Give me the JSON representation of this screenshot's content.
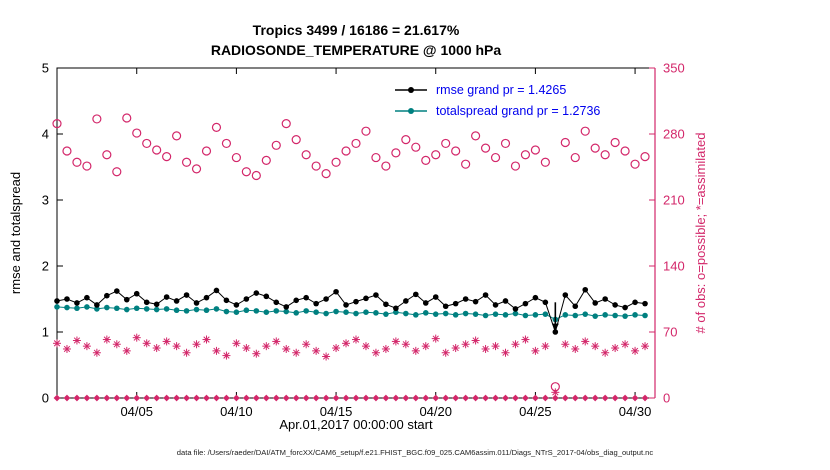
{
  "colors": {
    "obs_pink": "#d3276a",
    "rmse_black": "#000000",
    "spread_teal": "#008080",
    "legend_text_blue": "#0000ee",
    "axis_black": "#000000"
  },
  "footer": {
    "text": "data file: /Users/raeder/DAI/ATM_forcXX/CAM6_setup/f.e21.FHIST_BGC.f09_025.CAM6assim.011/Diags_NTrS_2017-04/obs_diag_output.nc"
  },
  "chart_data": {
    "type": "line",
    "title_line1": "Tropics 3499 / 16186 = 21.617%",
    "title_line2": "RADIOSONDE_TEMPERATURE @ 1000 hPa",
    "xlabel": "Apr.01,2017 00:00:00 start",
    "ylabel_left": "rmse and totalspread",
    "ylabel_right": "# of obs: o=possible; *=assimilated",
    "xlim": [
      1,
      31
    ],
    "ylim_left": [
      0,
      5
    ],
    "ylim_right": [
      0,
      350
    ],
    "xticks": [
      5,
      10,
      15,
      20,
      25,
      30
    ],
    "xtick_labels": [
      "04/05",
      "04/10",
      "04/15",
      "04/20",
      "04/25",
      "04/30"
    ],
    "yticks_left": [
      0,
      1,
      2,
      3,
      4,
      5
    ],
    "yticks_right": [
      0,
      70,
      140,
      210,
      280,
      350
    ],
    "grid": false,
    "legend_position": "top-inside",
    "legend": [
      {
        "label": "rmse grand pr = 1.4265",
        "color": "#000000",
        "marker": "dot-line"
      },
      {
        "label": "totalspread grand pr = 1.2736",
        "color": "#008080",
        "marker": "dot-line"
      }
    ],
    "x": [
      1,
      1.5,
      2,
      2.5,
      3,
      3.5,
      4,
      4.5,
      5,
      5.5,
      6,
      6.5,
      7,
      7.5,
      8,
      8.5,
      9,
      9.5,
      10,
      10.5,
      11,
      11.5,
      12,
      12.5,
      13,
      13.5,
      14,
      14.5,
      15,
      15.5,
      16,
      16.5,
      17,
      17.5,
      18,
      18.5,
      19,
      19.5,
      20,
      20.5,
      21,
      21.5,
      22,
      22.5,
      23,
      23.5,
      24,
      24.5,
      25,
      25.5,
      26,
      26.5,
      27,
      27.5,
      28,
      28.5,
      29,
      29.5,
      30,
      30.5
    ],
    "series": [
      {
        "name": "possible-obs",
        "axis": "right",
        "marker": "open-circle",
        "line": false,
        "color": "#d3276a",
        "values": [
          291,
          262,
          250,
          246,
          296,
          258,
          240,
          297,
          281,
          270,
          263,
          256,
          278,
          250,
          243,
          262,
          287,
          270,
          255,
          240,
          236,
          252,
          268,
          291,
          274,
          258,
          246,
          238,
          250,
          262,
          270,
          283,
          255,
          246,
          260,
          274,
          266,
          252,
          258,
          270,
          262,
          248,
          278,
          265,
          255,
          270,
          246,
          258,
          263,
          250,
          12,
          271,
          255,
          283,
          265,
          258,
          271,
          262,
          248,
          256
        ]
      },
      {
        "name": "assimilated-obs",
        "axis": "right",
        "marker": "asterisk",
        "line": false,
        "color": "#d3276a",
        "values": [
          58,
          52,
          61,
          55,
          48,
          62,
          57,
          50,
          64,
          58,
          53,
          60,
          55,
          48,
          57,
          62,
          50,
          45,
          58,
          53,
          47,
          55,
          60,
          52,
          48,
          57,
          50,
          44,
          53,
          58,
          62,
          55,
          48,
          52,
          60,
          57,
          50,
          55,
          63,
          48,
          53,
          57,
          61,
          52,
          55,
          48,
          57,
          62,
          50,
          55,
          6,
          57,
          52,
          60,
          55,
          48,
          53,
          57,
          50,
          55
        ]
      },
      {
        "name": "zero-markers",
        "axis": "right",
        "marker": "diamond",
        "line": false,
        "color": "#d3276a",
        "values": [
          0,
          0,
          0,
          0,
          0,
          0,
          0,
          0,
          0,
          0,
          0,
          0,
          0,
          0,
          0,
          0,
          0,
          0,
          0,
          0,
          0,
          0,
          0,
          0,
          0,
          0,
          0,
          0,
          0,
          0,
          0,
          0,
          0,
          0,
          0,
          0,
          0,
          0,
          0,
          0,
          0,
          0,
          0,
          0,
          0,
          0,
          0,
          0,
          0,
          0,
          0,
          0,
          0,
          0,
          0,
          0,
          0,
          0,
          0,
          0
        ]
      },
      {
        "name": "totalspread",
        "axis": "left",
        "marker": "dot",
        "line": true,
        "color": "#008080",
        "values": [
          1.38,
          1.37,
          1.36,
          1.38,
          1.35,
          1.37,
          1.36,
          1.34,
          1.36,
          1.35,
          1.34,
          1.35,
          1.33,
          1.32,
          1.34,
          1.33,
          1.35,
          1.31,
          1.3,
          1.33,
          1.32,
          1.3,
          1.32,
          1.31,
          1.29,
          1.32,
          1.3,
          1.28,
          1.31,
          1.3,
          1.28,
          1.3,
          1.29,
          1.27,
          1.3,
          1.28,
          1.26,
          1.29,
          1.27,
          1.28,
          1.26,
          1.28,
          1.27,
          1.25,
          1.27,
          1.26,
          1.28,
          1.25,
          1.26,
          1.27,
          1.19,
          1.26,
          1.25,
          1.27,
          1.24,
          1.26,
          1.25,
          1.24,
          1.26,
          1.25
        ]
      },
      {
        "name": "rmse",
        "axis": "left",
        "marker": "dot",
        "line": true,
        "color": "#000000",
        "values": [
          1.47,
          1.5,
          1.44,
          1.52,
          1.41,
          1.55,
          1.62,
          1.49,
          1.58,
          1.45,
          1.42,
          1.53,
          1.47,
          1.56,
          1.44,
          1.52,
          1.63,
          1.48,
          1.41,
          1.5,
          1.59,
          1.54,
          1.45,
          1.38,
          1.48,
          1.52,
          1.43,
          1.5,
          1.61,
          1.41,
          1.46,
          1.51,
          1.56,
          1.42,
          1.36,
          1.47,
          1.57,
          1.44,
          1.53,
          1.39,
          1.43,
          1.5,
          1.46,
          1.56,
          1.41,
          1.47,
          1.35,
          1.43,
          1.52,
          1.45,
          1.0,
          1.56,
          1.39,
          1.64,
          1.44,
          1.5,
          1.41,
          1.37,
          1.45,
          1.43
        ]
      }
    ],
    "annotation": {
      "type": "down-arrow",
      "x": 26,
      "y_from": 1.45,
      "y_to": 1.02,
      "color": "#000000"
    }
  }
}
